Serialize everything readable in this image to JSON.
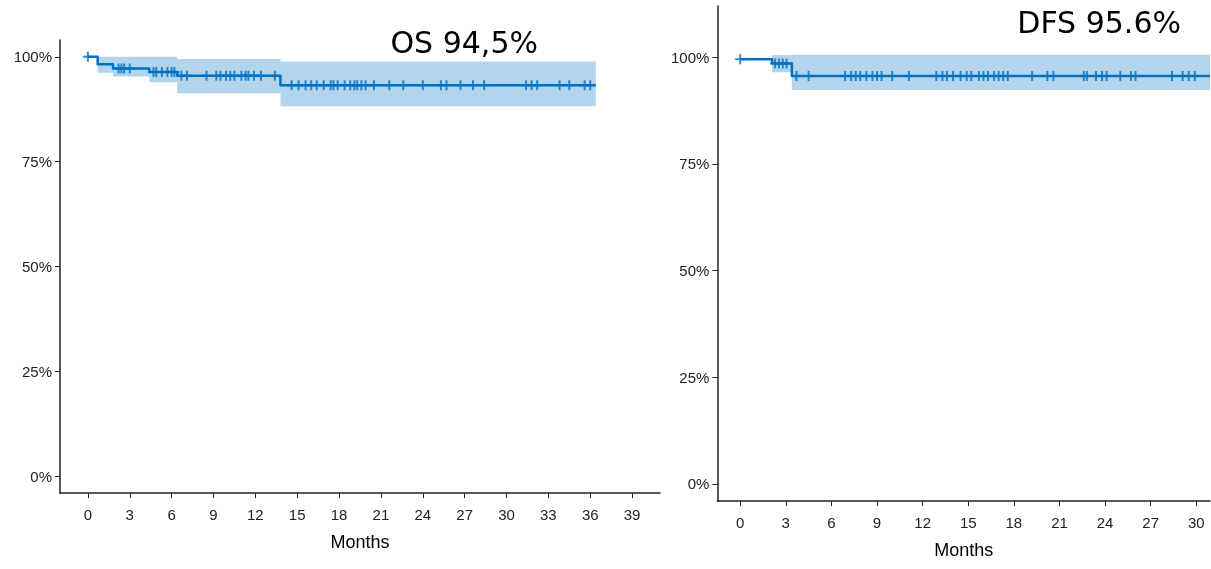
{
  "chart_data": [
    {
      "type": "line",
      "title": "OS 94,5%",
      "xlabel": "Months",
      "xlim": [
        -2,
        41
      ],
      "xticks": [
        0,
        3,
        6,
        9,
        12,
        15,
        18,
        21,
        24,
        27,
        30,
        33,
        36,
        39
      ],
      "ylim": [
        -4,
        104
      ],
      "yticks": [
        {
          "value": 0,
          "label": "0%"
        },
        {
          "value": 25,
          "label": "25%"
        },
        {
          "value": 50,
          "label": "50%"
        },
        {
          "value": 75,
          "label": "75%"
        },
        {
          "value": 100,
          "label": "100%"
        }
      ],
      "grid": false,
      "line_style": "solid",
      "series": [
        {
          "color": "#0070c0",
          "x": [
            0,
            0.7,
            0.7,
            1.8,
            1.8,
            4.4,
            4.4,
            6.4,
            6.4,
            13.8,
            13.8,
            36.4
          ],
          "values": [
            100,
            100,
            98.2,
            98.2,
            97.2,
            97.2,
            96.4,
            96.4,
            95.5,
            95.5,
            93.2,
            93.2
          ],
          "lower": [
            null,
            null,
            96.2,
            96.2,
            95.3,
            95.3,
            93.9,
            93.9,
            91.3,
            91.3,
            88.2,
            88.2
          ],
          "upper": [
            null,
            null,
            100,
            100,
            100,
            100,
            100,
            100,
            99.5,
            99.5,
            98.9,
            98.9
          ]
        },
        {
          "type": "scatter",
          "marker": "cross",
          "color": "#0070c0",
          "x": [
            0,
            2.2,
            2.4,
            2.6,
            3,
            4.7,
            4.9,
            5.3,
            5.7,
            6,
            6.2,
            6.7,
            7.1,
            8.5,
            9.2,
            9.5,
            9.9,
            10.2,
            10.5,
            11,
            11.3,
            11.5,
            11.9,
            12.4,
            13.4,
            14.6,
            15.1,
            15.6,
            16,
            16.4,
            16.9,
            17.4,
            17.6,
            17.9,
            18.4,
            18.8,
            19.1,
            19.3,
            19.6,
            19.9,
            20.5,
            21.6,
            22.6,
            24,
            25.3,
            25.7,
            26.7,
            27.6,
            28.4,
            31.4,
            31.8,
            32.2,
            33.8,
            34.5,
            35.6,
            36
          ],
          "values": [
            100,
            97.2,
            97.2,
            97.2,
            97.2,
            96.4,
            96.4,
            96.4,
            96.4,
            96.4,
            96.4,
            95.5,
            95.5,
            95.5,
            95.5,
            95.5,
            95.5,
            95.5,
            95.5,
            95.5,
            95.5,
            95.5,
            95.5,
            95.5,
            95.5,
            93.2,
            93.2,
            93.2,
            93.2,
            93.2,
            93.2,
            93.2,
            93.2,
            93.2,
            93.2,
            93.2,
            93.2,
            93.2,
            93.2,
            93.2,
            93.2,
            93.2,
            93.2,
            93.2,
            93.2,
            93.2,
            93.2,
            93.2,
            93.2,
            93.2,
            93.2,
            93.2,
            93.2,
            93.2,
            93.2,
            93.2
          ]
        }
      ]
    },
    {
      "type": "line",
      "title": "DFS 95.6%",
      "xlabel": "Months",
      "xlim": [
        -1.5,
        30.9
      ],
      "xticks": [
        0,
        3,
        6,
        9,
        12,
        15,
        18,
        21,
        24,
        27,
        30
      ],
      "ylim": [
        -4,
        112
      ],
      "yticks": [
        {
          "value": 0,
          "label": "0%"
        },
        {
          "value": 25,
          "label": "25%"
        },
        {
          "value": 50,
          "label": "50%"
        },
        {
          "value": 75,
          "label": "75%"
        },
        {
          "value": 100,
          "label": "100%"
        }
      ],
      "grid": false,
      "line_style": "solid",
      "series": [
        {
          "color": "#0070c0",
          "x": [
            0,
            2.1,
            2.1,
            3.4,
            3.4,
            30.9
          ],
          "values": [
            99.5,
            99.5,
            98.5,
            98.5,
            95.6,
            95.6
          ],
          "lower": [
            null,
            null,
            96.5,
            96.5,
            92.3,
            92.3
          ],
          "upper": [
            null,
            null,
            100.5,
            100.5,
            100.6,
            100.6
          ]
        },
        {
          "type": "scatter",
          "marker": "cross",
          "color": "#0070c0",
          "x": [
            0,
            2.3,
            2.55,
            2.8,
            3.05,
            3.7,
            4.5,
            6.9,
            7.3,
            7.6,
            7.9,
            8.3,
            8.7,
            9,
            9.3,
            10,
            11.1,
            12.9,
            13.3,
            13.6,
            14,
            14.5,
            14.9,
            15.2,
            15.7,
            16,
            16.3,
            16.7,
            17,
            17.3,
            17.6,
            19.2,
            20.2,
            20.6,
            22.6,
            22.8,
            23.4,
            23.8,
            24.1,
            25,
            25.7,
            26,
            28.4,
            29.1,
            29.5,
            29.9
          ],
          "values": [
            99.5,
            98.5,
            98.5,
            98.5,
            98.5,
            95.6,
            95.6,
            95.6,
            95.6,
            95.6,
            95.6,
            95.6,
            95.6,
            95.6,
            95.6,
            95.6,
            95.6,
            95.6,
            95.6,
            95.6,
            95.6,
            95.6,
            95.6,
            95.6,
            95.6,
            95.6,
            95.6,
            95.6,
            95.6,
            95.6,
            95.6,
            95.6,
            95.6,
            95.6,
            95.6,
            95.6,
            95.6,
            95.6,
            95.6,
            95.6,
            95.6,
            95.6,
            95.6,
            95.6,
            95.6,
            95.6
          ]
        }
      ]
    }
  ]
}
